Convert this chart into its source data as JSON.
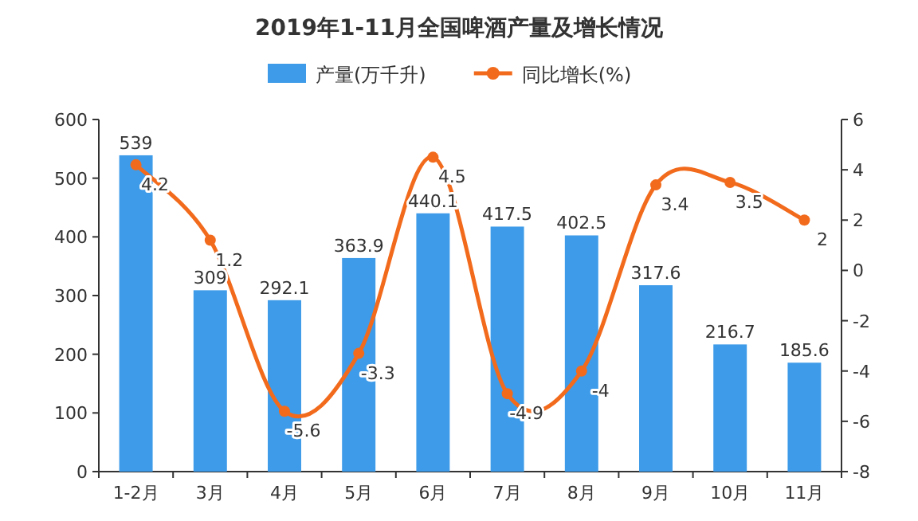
{
  "chart_data": {
    "type": "bar",
    "title": "2019年1-11月全国啤酒产量及增长情况",
    "categories": [
      "1-2月",
      "3月",
      "4月",
      "5月",
      "6月",
      "7月",
      "8月",
      "9月",
      "10月",
      "11月"
    ],
    "series": [
      {
        "name": "产量(万千升)",
        "color": "#3d9be9",
        "values": [
          539,
          309,
          292.1,
          363.9,
          440.1,
          417.5,
          402.5,
          317.6,
          216.7,
          185.6
        ]
      },
      {
        "name": "同比增长(%)",
        "type": "line",
        "axis": "y2",
        "color": "#f26b1d",
        "marker": "circle",
        "values": [
          4.2,
          1.2,
          -5.6,
          -3.3,
          4.5,
          -4.9,
          -4,
          3.4,
          3.5,
          2
        ]
      }
    ],
    "ylim": [
      0,
      600
    ],
    "yticks": [
      0,
      100,
      200,
      300,
      400,
      500,
      600
    ],
    "y2lim": [
      -8,
      6
    ],
    "y2ticks": [
      -8,
      -6,
      -4,
      -2,
      0,
      2,
      4,
      6
    ],
    "data_labels": true,
    "legend": "top",
    "grid": false
  }
}
